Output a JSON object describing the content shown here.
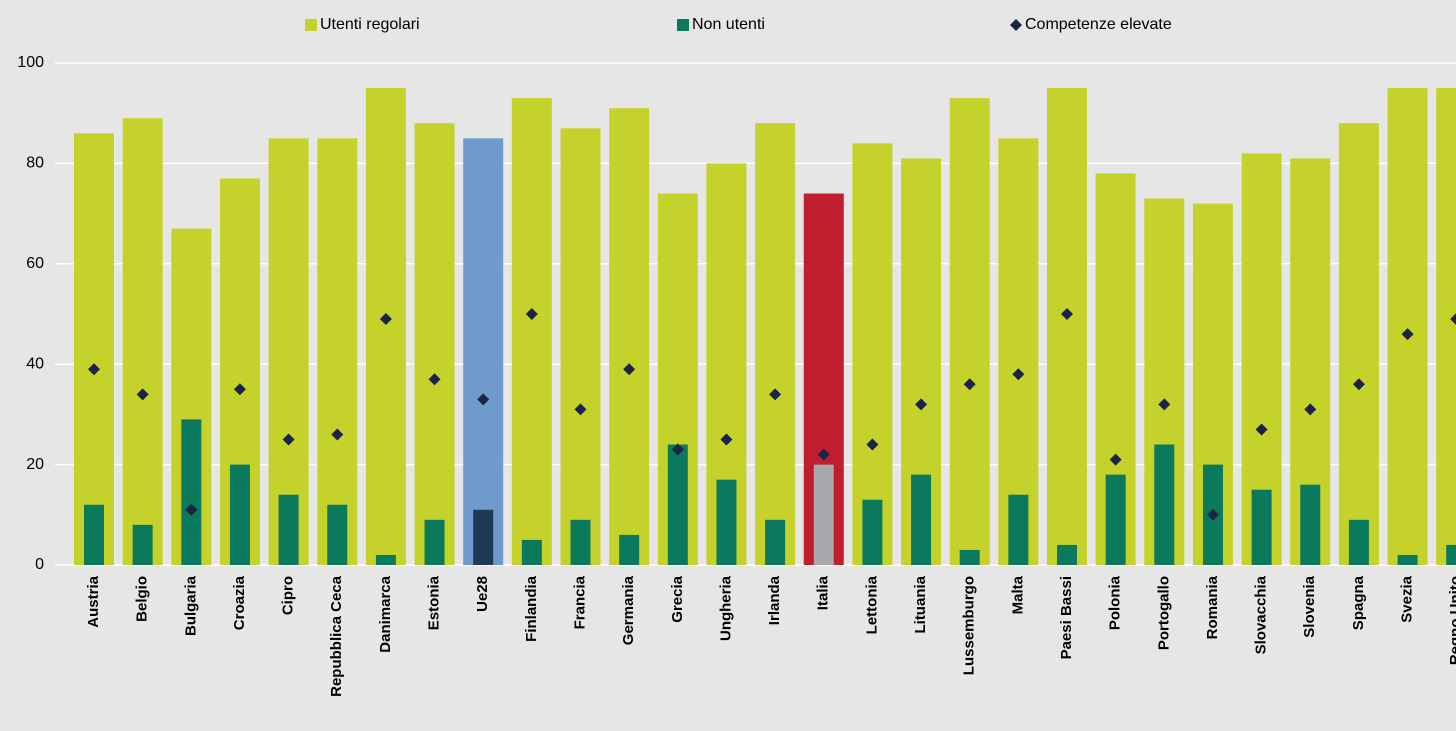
{
  "chart_data": {
    "type": "bar",
    "categories": [
      "Austria",
      "Belgio",
      "Bulgaria",
      "Croazia",
      "Cipro",
      "Repubblica Ceca",
      "Danimarca",
      "Estonia",
      "Ue28",
      "Finlandia",
      "Francia",
      "Germania",
      "Grecia",
      "Ungheria",
      "Irlanda",
      "Italia",
      "Lettonia",
      "Lituania",
      "Lussemburgo",
      "Malta",
      "Paesi Bassi",
      "Polonia",
      "Portogallo",
      "Romania",
      "Slovacchia",
      "Slovenia",
      "Spagna",
      "Svezia",
      "Regno Unito"
    ],
    "series": [
      {
        "name": "Utenti regolari",
        "color": "#c6d22c",
        "colors": [
          "#c6d22c",
          "#c6d22c",
          "#c6d22c",
          "#c6d22c",
          "#c6d22c",
          "#c6d22c",
          "#c6d22c",
          "#c6d22c",
          "#6f9acc",
          "#c6d22c",
          "#c6d22c",
          "#c6d22c",
          "#c6d22c",
          "#c6d22c",
          "#c6d22c",
          "#be1e2d",
          "#c6d22c",
          "#c6d22c",
          "#c6d22c",
          "#c6d22c",
          "#c6d22c",
          "#c6d22c",
          "#c6d22c",
          "#c6d22c",
          "#c6d22c",
          "#c6d22c",
          "#c6d22c",
          "#c6d22c",
          "#c6d22c"
        ],
        "values": [
          86,
          89,
          67,
          77,
          85,
          85,
          95,
          88,
          85,
          93,
          87,
          91,
          74,
          80,
          88,
          74,
          84,
          81,
          93,
          85,
          95,
          78,
          73,
          72,
          82,
          81,
          88,
          95,
          95
        ]
      },
      {
        "name": "Non utenti",
        "color": "#0b7a5c",
        "colors": [
          "#0b7a5c",
          "#0b7a5c",
          "#0b7a5c",
          "#0b7a5c",
          "#0b7a5c",
          "#0b7a5c",
          "#0b7a5c",
          "#0b7a5c",
          "#1f3a52",
          "#0b7a5c",
          "#0b7a5c",
          "#0b7a5c",
          "#0b7a5c",
          "#0b7a5c",
          "#0b7a5c",
          "#a7a9ac",
          "#0b7a5c",
          "#0b7a5c",
          "#0b7a5c",
          "#0b7a5c",
          "#0b7a5c",
          "#0b7a5c",
          "#0b7a5c",
          "#0b7a5c",
          "#0b7a5c",
          "#0b7a5c",
          "#0b7a5c",
          "#0b7a5c",
          "#0b7a5c"
        ],
        "values": [
          12,
          8,
          29,
          20,
          14,
          12,
          2,
          9,
          11,
          5,
          9,
          6,
          24,
          17,
          9,
          20,
          13,
          18,
          3,
          14,
          4,
          18,
          24,
          20,
          15,
          16,
          9,
          2,
          4
        ]
      },
      {
        "name": "Competenze elevate",
        "color": "#1a2447",
        "marker": "diamond",
        "values": [
          39,
          34,
          11,
          35,
          25,
          26,
          49,
          37,
          33,
          50,
          31,
          39,
          23,
          25,
          34,
          22,
          24,
          32,
          36,
          38,
          50,
          21,
          32,
          10,
          27,
          31,
          36,
          46,
          49
        ]
      }
    ],
    "ylim": [
      0,
      100
    ],
    "yticks": [
      0,
      20,
      40,
      60,
      80,
      100
    ],
    "grid": true,
    "legend": "top"
  }
}
